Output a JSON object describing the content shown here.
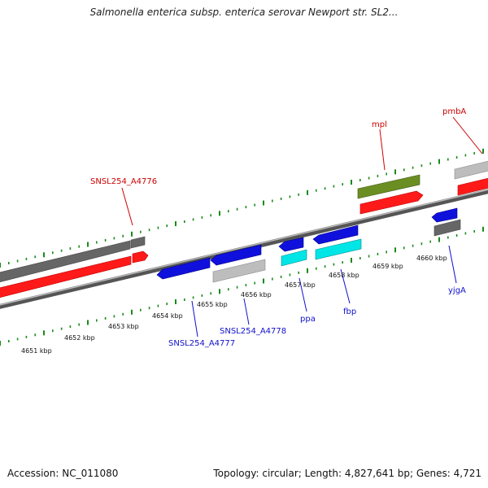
{
  "title": "Salmonella enterica subsp. enterica serovar Newport str. SL2...",
  "footer": {
    "accession": "Accession: NC_011080",
    "summary": "Topology: circular; Length: 4,827,641 bp; Genes: 4,721"
  },
  "colors": {
    "forward_rna": "#ff0000",
    "forward_cds_dark": "#6e6e6e",
    "forward_green": "#6b8e23",
    "reverse_cds": "#1010dd",
    "reverse_cyan": "#00e5e5",
    "reverse_light": "#bdbdbd",
    "tick": "#1a8a1a",
    "label_red": "#cc0000",
    "label_blue": "#1010cc"
  },
  "kbp_labels": [
    "4651 kbp",
    "4652 kbp",
    "4653 kbp",
    "4654 kbp",
    "4655 kbp",
    "4656 kbp",
    "4657 kbp",
    "4658 kbp",
    "4659 kbp",
    "4660 kbp"
  ],
  "gene_labels": {
    "forward": [
      "SNSL254_A4776",
      "mpl",
      "pmbA"
    ],
    "reverse": [
      "SNSL254_A4777",
      "SNSL254_A4778",
      "ppa",
      "fbp",
      "yjgA"
    ]
  }
}
